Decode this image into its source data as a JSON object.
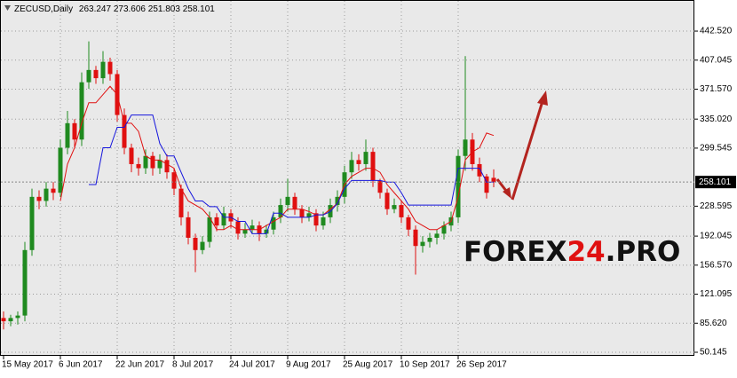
{
  "chart_data": {
    "type": "candlestick",
    "title": "ZECUSD,Daily",
    "categories": [
      "15 May 2017",
      null,
      null,
      null,
      null,
      null,
      null,
      null,
      "6 Jun 2017",
      null,
      null,
      null,
      null,
      null,
      null,
      null,
      "22 Jun 2017",
      null,
      null,
      null,
      null,
      null,
      null,
      null,
      "8 Jul 2017",
      null,
      null,
      null,
      null,
      null,
      null,
      null,
      "24 Jul 2017",
      null,
      null,
      null,
      null,
      null,
      null,
      null,
      "9 Aug 2017",
      null,
      null,
      null,
      null,
      null,
      null,
      null,
      "25 Aug 2017",
      null,
      null,
      null,
      null,
      null,
      null,
      null,
      "10 Sep 2017",
      null,
      null,
      null,
      null,
      null,
      null,
      null,
      "26 Sep 2017",
      null,
      null,
      null,
      null,
      null
    ],
    "open": [
      92,
      88,
      92,
      95,
      175,
      240,
      235,
      250,
      245,
      300,
      330,
      310,
      380,
      395,
      385,
      405,
      390,
      340,
      300,
      280,
      275,
      290,
      275,
      285,
      270,
      250,
      215,
      190,
      175,
      185,
      215,
      205,
      220,
      210,
      195,
      200,
      205,
      195,
      200,
      215,
      230,
      240,
      225,
      215,
      220,
      205,
      215,
      230,
      240,
      270,
      285,
      280,
      295,
      260,
      245,
      225,
      230,
      215,
      200,
      180,
      185,
      190,
      195,
      205,
      215,
      290,
      310,
      280,
      265,
      263.247
    ],
    "high": [
      100,
      96,
      100,
      185,
      250,
      248,
      258,
      258,
      310,
      345,
      335,
      392,
      430,
      400,
      418,
      410,
      395,
      348,
      305,
      288,
      298,
      295,
      292,
      292,
      275,
      255,
      222,
      195,
      192,
      222,
      220,
      228,
      225,
      215,
      208,
      212,
      210,
      206,
      222,
      238,
      262,
      245,
      230,
      228,
      225,
      222,
      238,
      248,
      278,
      295,
      292,
      310,
      300,
      262,
      250,
      238,
      235,
      218,
      205,
      192,
      196,
      200,
      210,
      222,
      298,
      412,
      318,
      288,
      268,
      273.606
    ],
    "low": [
      78,
      82,
      84,
      88,
      168,
      225,
      228,
      236,
      240,
      292,
      300,
      302,
      372,
      378,
      378,
      382,
      332,
      292,
      270,
      266,
      268,
      266,
      268,
      262,
      242,
      205,
      182,
      148,
      170,
      178,
      198,
      200,
      202,
      188,
      190,
      195,
      186,
      190,
      194,
      208,
      222,
      218,
      208,
      210,
      198,
      200,
      208,
      222,
      232,
      262,
      272,
      272,
      252,
      238,
      218,
      220,
      208,
      192,
      145,
      172,
      178,
      182,
      188,
      198,
      208,
      272,
      272,
      258,
      238,
      251.803
    ],
    "close": [
      88,
      92,
      95,
      175,
      240,
      235,
      250,
      245,
      300,
      330,
      310,
      380,
      395,
      385,
      405,
      390,
      340,
      300,
      280,
      275,
      290,
      275,
      285,
      270,
      250,
      215,
      190,
      175,
      185,
      215,
      205,
      220,
      210,
      195,
      200,
      205,
      195,
      200,
      215,
      230,
      240,
      225,
      215,
      220,
      205,
      215,
      230,
      240,
      270,
      285,
      280,
      295,
      260,
      245,
      225,
      230,
      215,
      200,
      180,
      185,
      190,
      195,
      205,
      215,
      290,
      310,
      280,
      265,
      245,
      258.101
    ],
    "up_color": "#1f8a1f",
    "down_color": "#e01010",
    "lines": [
      {
        "color": "#e01010",
        "values": [
          null,
          null,
          null,
          null,
          null,
          null,
          null,
          null,
          235,
          280,
          300,
          330,
          355,
          355,
          365,
          375,
          365,
          330,
          330,
          320,
          290,
          285,
          285,
          280,
          275,
          250,
          235,
          230,
          225,
          215,
          200,
          200,
          205,
          200,
          200,
          200,
          200,
          205,
          210,
          215,
          225,
          225,
          225,
          222,
          218,
          218,
          225,
          232,
          255,
          265,
          270,
          275,
          275,
          270,
          255,
          245,
          235,
          225,
          210,
          205,
          200,
          200,
          205,
          210,
          240,
          285,
          295,
          300,
          318,
          315
        ]
      },
      {
        "color": "#1515dd",
        "values": [
          null,
          null,
          null,
          null,
          null,
          null,
          null,
          null,
          null,
          null,
          null,
          null,
          255,
          255,
          300,
          300,
          325,
          325,
          340,
          340,
          340,
          340,
          305,
          290,
          290,
          270,
          250,
          235,
          235,
          228,
          228,
          215,
          215,
          210,
          210,
          195,
          195,
          195,
          220,
          220,
          215,
          215,
          215,
          215,
          218,
          218,
          222,
          232,
          250,
          260,
          260,
          260,
          260,
          260,
          258,
          258,
          245,
          230,
          230,
          230,
          230,
          230,
          230,
          230,
          275,
          275,
          275,
          275,
          258,
          258
        ]
      }
    ],
    "ylim": [
      45.8,
      480.5
    ],
    "yticks": [
      {
        "value": 442.52,
        "label": "442.520"
      },
      {
        "value": 407.045,
        "label": "407.045"
      },
      {
        "value": 371.57,
        "label": "371.570"
      },
      {
        "value": 335.02,
        "label": "335.020"
      },
      {
        "value": 299.545,
        "label": "299.545"
      },
      {
        "value": 228.595,
        "label": "228.595"
      },
      {
        "value": 192.045,
        "label": "192.045"
      },
      {
        "value": 156.57,
        "label": "156.570"
      },
      {
        "value": 121.095,
        "label": "121.095"
      },
      {
        "value": 85.62,
        "label": "85.620"
      },
      {
        "value": 50.145,
        "label": "50.145"
      }
    ],
    "grid": true,
    "watermark": [
      "FOREX",
      "24",
      ".PRO"
    ]
  }
}
